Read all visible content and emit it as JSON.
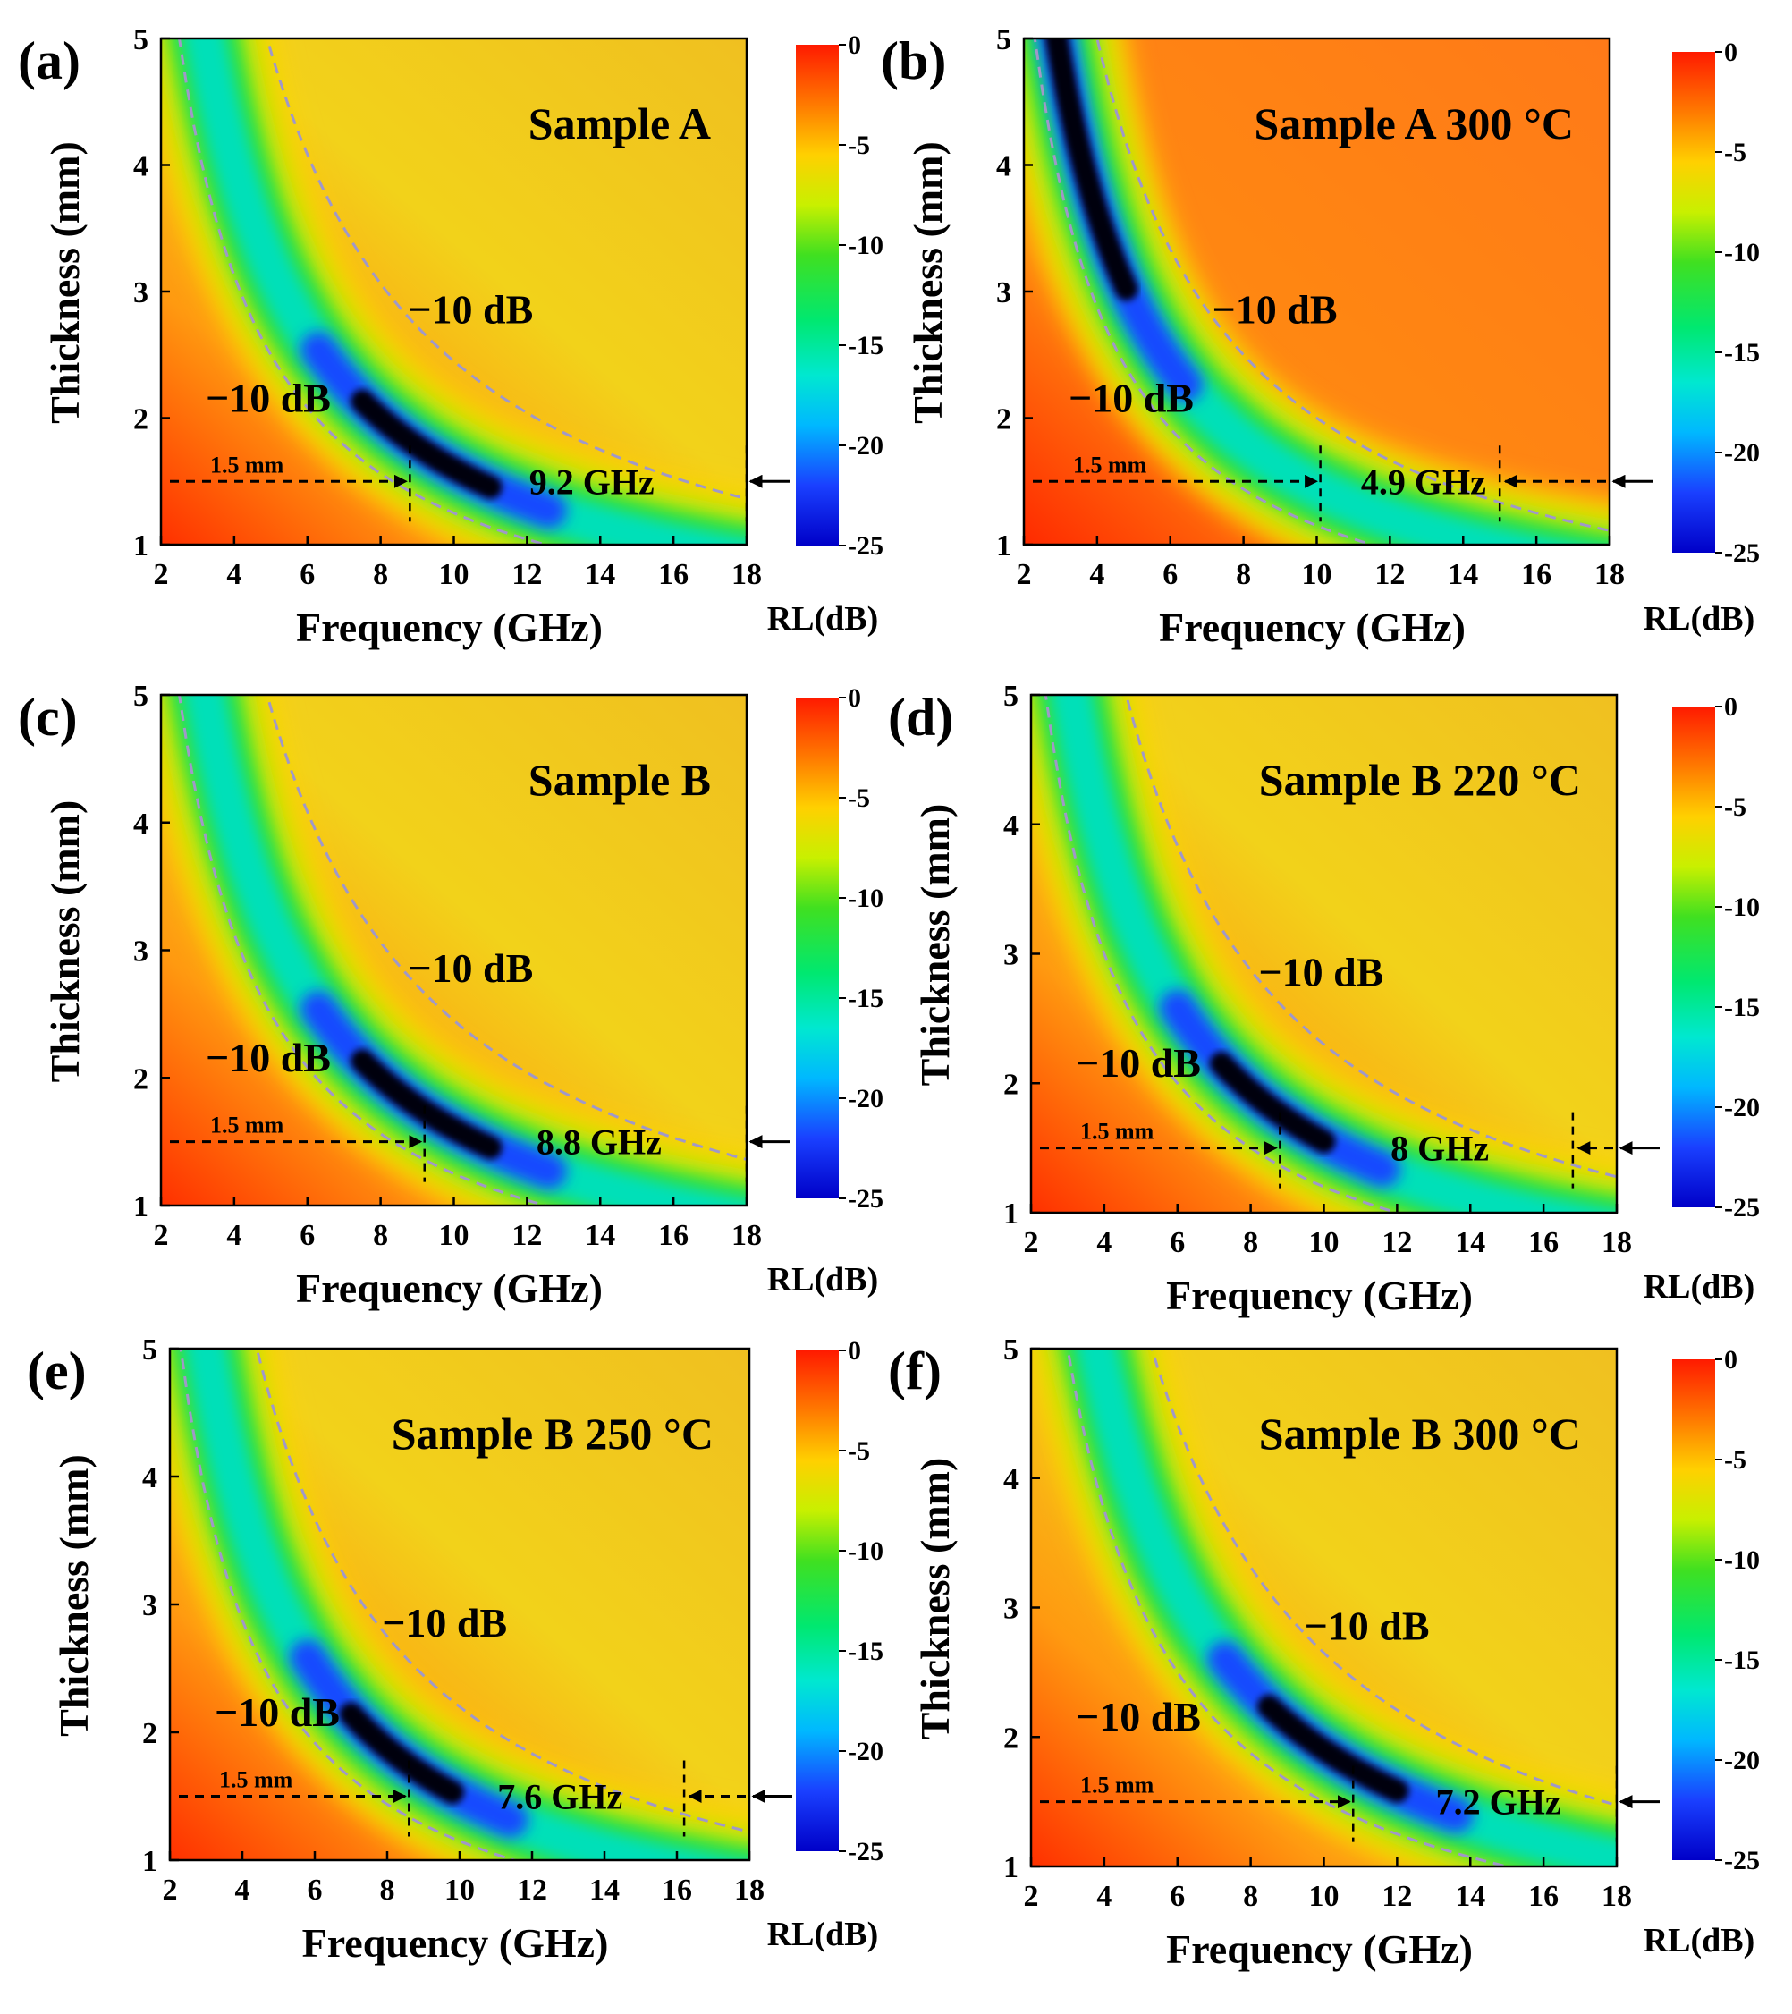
{
  "colorbar": {
    "title": "RL(dB)",
    "ticks": [
      "0",
      "-5",
      "-10",
      "-15",
      "-20",
      "-25"
    ],
    "range": [
      -25,
      0
    ]
  },
  "chart_data": [
    {
      "type": "heatmap",
      "letter": "(a)",
      "title": "Sample A",
      "xlabel": "Frequency (GHz)",
      "ylabel": "Thickness (mm)",
      "xlim": [
        2,
        18
      ],
      "ylim": [
        1,
        5
      ],
      "xticks": [
        "2",
        "4",
        "6",
        "8",
        "10",
        "12",
        "14",
        "16",
        "18"
      ],
      "yticks": [
        "1",
        "2",
        "3",
        "4",
        "5"
      ],
      "contour_label": "−10 dB",
      "thickness_label": "1.5 mm",
      "eab_label": "9.2 GHz",
      "eab_range_ghz": [
        8.8,
        18.0
      ],
      "band_k": 16,
      "lower_k": 12.5,
      "upper_k": 24.5,
      "blob_f": [
        7.5,
        11.0
      ],
      "min_rl": -25,
      "background_rl": -5,
      "dash_label_arrow": true
    },
    {
      "type": "heatmap",
      "letter": "(b)",
      "title": "Sample A 300 °C",
      "xlabel": "Frequency (GHz)",
      "ylabel": "Thickness (mm)",
      "xlim": [
        2,
        18
      ],
      "ylim": [
        1,
        5
      ],
      "xticks": [
        "2",
        "4",
        "6",
        "8",
        "10",
        "12",
        "14",
        "16",
        "18"
      ],
      "yticks": [
        "1",
        "2",
        "3",
        "4",
        "5"
      ],
      "contour_label": "−10 dB",
      "thickness_label": "1.5 mm",
      "eab_label": "4.9 GHz",
      "eab_range_ghz": [
        10.1,
        15.0
      ],
      "band_k": 14.5,
      "lower_k": 11.5,
      "upper_k": 20,
      "blob_f": [
        2.8,
        4.8
      ],
      "min_rl": -25,
      "background_rl": -3
    },
    {
      "type": "heatmap",
      "letter": "(c)",
      "title": "Sample B",
      "xlabel": "Frequency (GHz)",
      "ylabel": "Thickness (mm)",
      "xlim": [
        2,
        18
      ],
      "ylim": [
        1,
        5
      ],
      "xticks": [
        "2",
        "4",
        "6",
        "8",
        "10",
        "12",
        "14",
        "16",
        "18"
      ],
      "yticks": [
        "1",
        "2",
        "3",
        "4",
        "5"
      ],
      "contour_label": "−10 dB",
      "thickness_label": "1.5 mm",
      "eab_label": "8.8 GHz",
      "eab_range_ghz": [
        9.2,
        18.0
      ],
      "band_k": 16,
      "lower_k": 12.5,
      "upper_k": 24.5,
      "blob_f": [
        7.5,
        11.0
      ],
      "min_rl": -25,
      "background_rl": -5
    },
    {
      "type": "heatmap",
      "letter": "(d)",
      "title": "Sample B 220 °C",
      "xlabel": "Frequency (GHz)",
      "ylabel": "Thickness (mm)",
      "xlim": [
        2,
        18
      ],
      "ylim": [
        1,
        5
      ],
      "xticks": [
        "2",
        "4",
        "6",
        "8",
        "10",
        "12",
        "14",
        "16",
        "18"
      ],
      "yticks": [
        "1",
        "2",
        "3",
        "4",
        "5"
      ],
      "contour_label": "−10 dB",
      "thickness_label": "1.5 mm",
      "eab_label": "8 GHz",
      "eab_range_ghz": [
        8.8,
        16.8
      ],
      "band_k": 15.5,
      "lower_k": 12,
      "upper_k": 23,
      "blob_f": [
        7.2,
        10.0
      ],
      "min_rl": -25,
      "background_rl": -5
    },
    {
      "type": "heatmap",
      "letter": "(e)",
      "title": "Sample B 250 °C",
      "xlabel": "Frequency (GHz)",
      "ylabel": "Thickness (mm)",
      "xlim": [
        2,
        18
      ],
      "ylim": [
        1,
        5
      ],
      "xticks": [
        "2",
        "4",
        "6",
        "8",
        "10",
        "12",
        "14",
        "16",
        "18"
      ],
      "yticks": [
        "1",
        "2",
        "3",
        "4",
        "5"
      ],
      "contour_label": "−10 dB",
      "thickness_label": "1.5 mm",
      "eab_label": "7.6 GHz",
      "eab_range_ghz": [
        8.6,
        16.2
      ],
      "band_k": 15,
      "lower_k": 11.5,
      "upper_k": 22,
      "blob_f": [
        7.0,
        9.8
      ],
      "min_rl": -25,
      "background_rl": -5
    },
    {
      "type": "heatmap",
      "letter": "(f)",
      "title": "Sample B 300 °C",
      "xlabel": "Frequency (GHz)",
      "ylabel": "Thickness (mm)",
      "xlim": [
        2,
        18
      ],
      "ylim": [
        1,
        5
      ],
      "xticks": [
        "2",
        "4",
        "6",
        "8",
        "10",
        "12",
        "14",
        "16",
        "18"
      ],
      "yticks": [
        "1",
        "2",
        "3",
        "4",
        "5"
      ],
      "contour_label": "−10 dB",
      "thickness_label": "1.5 mm",
      "eab_label": "7.2 GHz",
      "eab_range_ghz": [
        10.8,
        18.0
      ],
      "band_k": 19,
      "lower_k": 15,
      "upper_k": 26.5,
      "blob_f": [
        8.5,
        12.0
      ],
      "min_rl": -25,
      "background_rl": -4
    }
  ]
}
